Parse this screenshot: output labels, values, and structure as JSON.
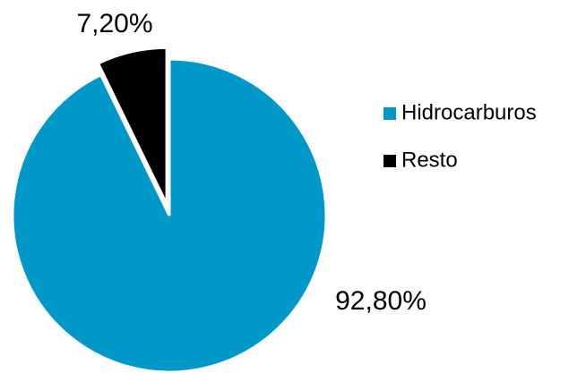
{
  "chart_data": {
    "type": "pie",
    "categories": [
      "Hidrocarburos",
      "Resto"
    ],
    "values": [
      92.8,
      7.2
    ],
    "value_labels": [
      "92,80%",
      "7,20%"
    ],
    "colors": [
      "#0098c8",
      "#000000"
    ]
  }
}
